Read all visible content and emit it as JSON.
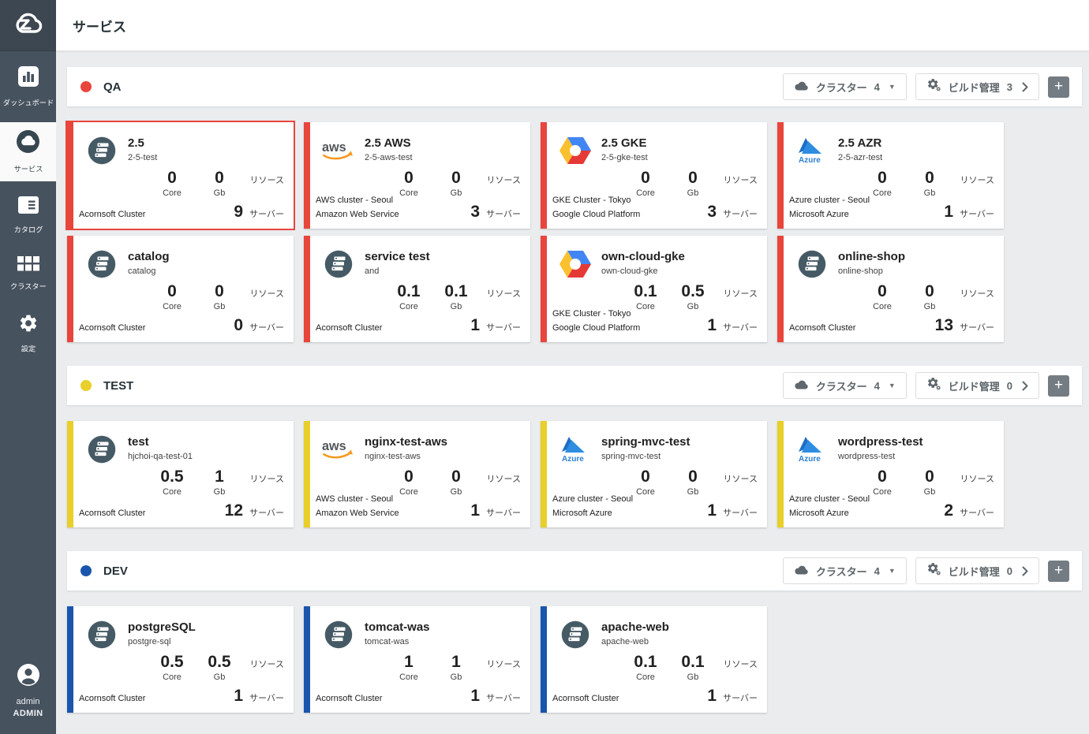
{
  "header": {
    "title": "サービス"
  },
  "sidebar": {
    "items": [
      {
        "icon": "dashboard-icon",
        "label": "ダッシュボード",
        "active": false
      },
      {
        "icon": "service-icon",
        "label": "サービス",
        "active": true
      },
      {
        "icon": "catalog-icon",
        "label": "カタログ",
        "active": false
      },
      {
        "icon": "cluster-icon",
        "label": "クラスター",
        "active": false
      },
      {
        "icon": "settings-icon",
        "label": "設定",
        "active": false
      }
    ],
    "user": {
      "name": "admin",
      "role": "ADMIN"
    }
  },
  "section_controls": {
    "cluster_label": "クラスター",
    "build_label": "ビルド管理",
    "plus_label": "+"
  },
  "card_labels": {
    "core": "Core",
    "gb": "Gb",
    "resource": "リソース",
    "server": "サーバー"
  },
  "colors": {
    "qa": "#e8453c",
    "test": "#e9cf29",
    "dev": "#1a55ad",
    "selected_border": "#e8453c"
  },
  "sections": [
    {
      "name": "QA",
      "color": "#e8453c",
      "cluster_count": "4",
      "build_count": "3",
      "cards": [
        {
          "title": "2.5",
          "subtitle": "2-5-test",
          "provider": "acornsoft",
          "core": "0",
          "gb": "0",
          "servers": "9",
          "cluster": [
            "Acornsoft Cluster"
          ],
          "selected": true
        },
        {
          "title": "2.5 AWS",
          "subtitle": "2-5-aws-test",
          "provider": "aws",
          "core": "0",
          "gb": "0",
          "servers": "3",
          "cluster": [
            "AWS cluster - Seoul",
            "Amazon Web Service"
          ]
        },
        {
          "title": "2.5 GKE",
          "subtitle": "2-5-gke-test",
          "provider": "gcp",
          "core": "0",
          "gb": "0",
          "servers": "3",
          "cluster": [
            "GKE Cluster - Tokyo",
            "Google Cloud Platform"
          ]
        },
        {
          "title": "2.5 AZR",
          "subtitle": "2-5-azr-test",
          "provider": "azure",
          "core": "0",
          "gb": "0",
          "servers": "1",
          "cluster": [
            "Azure cluster - Seoul",
            "Microsoft Azure"
          ]
        },
        {
          "title": "catalog",
          "subtitle": "catalog",
          "provider": "acornsoft",
          "core": "0",
          "gb": "0",
          "servers": "0",
          "cluster": [
            "Acornsoft Cluster"
          ]
        },
        {
          "title": "service test",
          "subtitle": "and",
          "provider": "acornsoft",
          "core": "0.1",
          "gb": "0.1",
          "servers": "1",
          "cluster": [
            "Acornsoft Cluster"
          ]
        },
        {
          "title": "own-cloud-gke",
          "subtitle": "own-cloud-gke",
          "provider": "gcp",
          "core": "0.1",
          "gb": "0.5",
          "servers": "1",
          "cluster": [
            "GKE Cluster - Tokyo",
            "Google Cloud Platform"
          ]
        },
        {
          "title": "online-shop",
          "subtitle": "online-shop",
          "provider": "acornsoft",
          "core": "0",
          "gb": "0",
          "servers": "13",
          "cluster": [
            "Acornsoft Cluster"
          ]
        }
      ]
    },
    {
      "name": "TEST",
      "color": "#e9cf29",
      "cluster_count": "4",
      "build_count": "0",
      "cards": [
        {
          "title": "test",
          "subtitle": "hjchoi-qa-test-01",
          "provider": "acornsoft",
          "core": "0.5",
          "gb": "1",
          "servers": "12",
          "cluster": [
            "Acornsoft Cluster"
          ]
        },
        {
          "title": "nginx-test-aws",
          "subtitle": "nginx-test-aws",
          "provider": "aws",
          "core": "0",
          "gb": "0",
          "servers": "1",
          "cluster": [
            "AWS cluster - Seoul",
            "Amazon Web Service"
          ]
        },
        {
          "title": "spring-mvc-test",
          "subtitle": "spring-mvc-test",
          "provider": "azure",
          "core": "0",
          "gb": "0",
          "servers": "1",
          "cluster": [
            "Azure cluster - Seoul",
            "Microsoft Azure"
          ]
        },
        {
          "title": "wordpress-test",
          "subtitle": "wordpress-test",
          "provider": "azure",
          "core": "0",
          "gb": "0",
          "servers": "2",
          "cluster": [
            "Azure cluster - Seoul",
            "Microsoft Azure"
          ]
        }
      ]
    },
    {
      "name": "DEV",
      "color": "#1a55ad",
      "cluster_count": "4",
      "build_count": "0",
      "cards": [
        {
          "title": "postgreSQL",
          "subtitle": "postgre-sql",
          "provider": "acornsoft",
          "core": "0.5",
          "gb": "0.5",
          "servers": "1",
          "cluster": [
            "Acornsoft Cluster"
          ]
        },
        {
          "title": "tomcat-was",
          "subtitle": "tomcat-was",
          "provider": "acornsoft",
          "core": "1",
          "gb": "1",
          "servers": "1",
          "cluster": [
            "Acornsoft Cluster"
          ]
        },
        {
          "title": "apache-web",
          "subtitle": "apache-web",
          "provider": "acornsoft",
          "core": "0.1",
          "gb": "0.1",
          "servers": "1",
          "cluster": [
            "Acornsoft Cluster"
          ]
        }
      ]
    }
  ]
}
